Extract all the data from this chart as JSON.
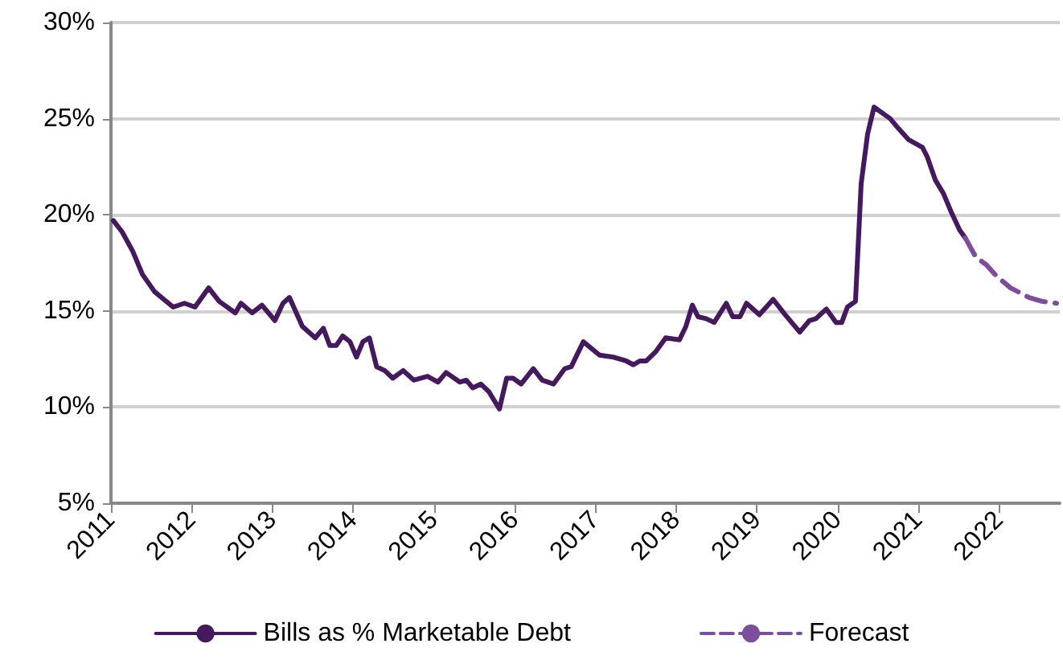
{
  "chart_data": {
    "type": "line",
    "xlim": [
      2011,
      2022.75
    ],
    "xticks": [
      2011,
      2012,
      2013,
      2014,
      2015,
      2016,
      2017,
      2018,
      2019,
      2020,
      2021,
      2022
    ],
    "ylim": [
      5,
      30
    ],
    "yticks": [
      {
        "value": 5,
        "label": "5%"
      },
      {
        "value": 10,
        "label": "10%"
      },
      {
        "value": 15,
        "label": "15%"
      },
      {
        "value": 20,
        "label": "20%"
      },
      {
        "value": 25,
        "label": "25%"
      },
      {
        "value": 30,
        "label": "30%"
      }
    ],
    "grid": "y",
    "legend": "bottom",
    "marker": "none",
    "series": [
      {
        "name": "Bills as % Marketable Debt",
        "color": "#44195e",
        "line_style": "solid",
        "x": [
          2011.03,
          2011.14,
          2011.27,
          2011.39,
          2011.54,
          2011.77,
          2011.91,
          2012.04,
          2012.21,
          2012.34,
          2012.54,
          2012.61,
          2012.75,
          2012.87,
          2013.03,
          2013.13,
          2013.21,
          2013.37,
          2013.53,
          2013.63,
          2013.71,
          2013.79,
          2013.87,
          2013.96,
          2014.04,
          2014.12,
          2014.2,
          2014.29,
          2014.39,
          2014.49,
          2014.62,
          2014.75,
          2014.92,
          2015.05,
          2015.15,
          2015.32,
          2015.4,
          2015.48,
          2015.58,
          2015.68,
          2015.81,
          2015.9,
          2015.98,
          2016.08,
          2016.23,
          2016.34,
          2016.48,
          2016.62,
          2016.7,
          2016.85,
          2017.05,
          2017.22,
          2017.38,
          2017.47,
          2017.55,
          2017.63,
          2017.75,
          2017.87,
          2018.04,
          2018.12,
          2018.2,
          2018.27,
          2018.37,
          2018.47,
          2018.62,
          2018.7,
          2018.79,
          2018.87,
          2019.03,
          2019.2,
          2019.35,
          2019.53,
          2019.65,
          2019.73,
          2019.86,
          2019.98,
          2020.05,
          2020.12,
          2020.22,
          2020.29,
          2020.37,
          2020.45,
          2020.55,
          2020.65,
          2020.75,
          2020.88,
          2021.05,
          2021.11,
          2021.21,
          2021.31,
          2021.41,
          2021.51,
          2021.58
        ],
        "values": [
          19.7,
          19.1,
          18.1,
          16.9,
          16.0,
          15.2,
          15.4,
          15.2,
          16.2,
          15.5,
          14.9,
          15.4,
          14.9,
          15.3,
          14.5,
          15.4,
          15.7,
          14.2,
          13.6,
          14.1,
          13.2,
          13.2,
          13.7,
          13.4,
          12.6,
          13.4,
          13.6,
          12.1,
          11.9,
          11.5,
          11.9,
          11.4,
          11.6,
          11.3,
          11.8,
          11.3,
          11.4,
          11.0,
          11.2,
          10.8,
          9.9,
          11.5,
          11.5,
          11.2,
          12.0,
          11.4,
          11.2,
          12.0,
          12.1,
          13.4,
          12.7,
          12.6,
          12.4,
          12.2,
          12.4,
          12.4,
          12.9,
          13.6,
          13.5,
          14.2,
          15.3,
          14.7,
          14.6,
          14.4,
          15.4,
          14.7,
          14.7,
          15.4,
          14.8,
          15.6,
          14.8,
          13.9,
          14.5,
          14.6,
          15.1,
          14.4,
          14.4,
          15.2,
          15.5,
          21.6,
          24.2,
          25.6,
          25.3,
          25.0,
          24.5,
          23.9,
          23.5,
          23.0,
          21.8,
          21.1,
          20.1,
          19.2,
          18.8
        ]
      },
      {
        "name": "Forecast",
        "color": "#7d4e9e",
        "line_style": "dashed",
        "x": [
          2021.58,
          2021.71,
          2021.84,
          2021.97,
          2022.14,
          2022.37,
          2022.53,
          2022.71
        ],
        "values": [
          18.8,
          17.8,
          17.4,
          16.8,
          16.2,
          15.7,
          15.5,
          15.4
        ]
      }
    ]
  }
}
